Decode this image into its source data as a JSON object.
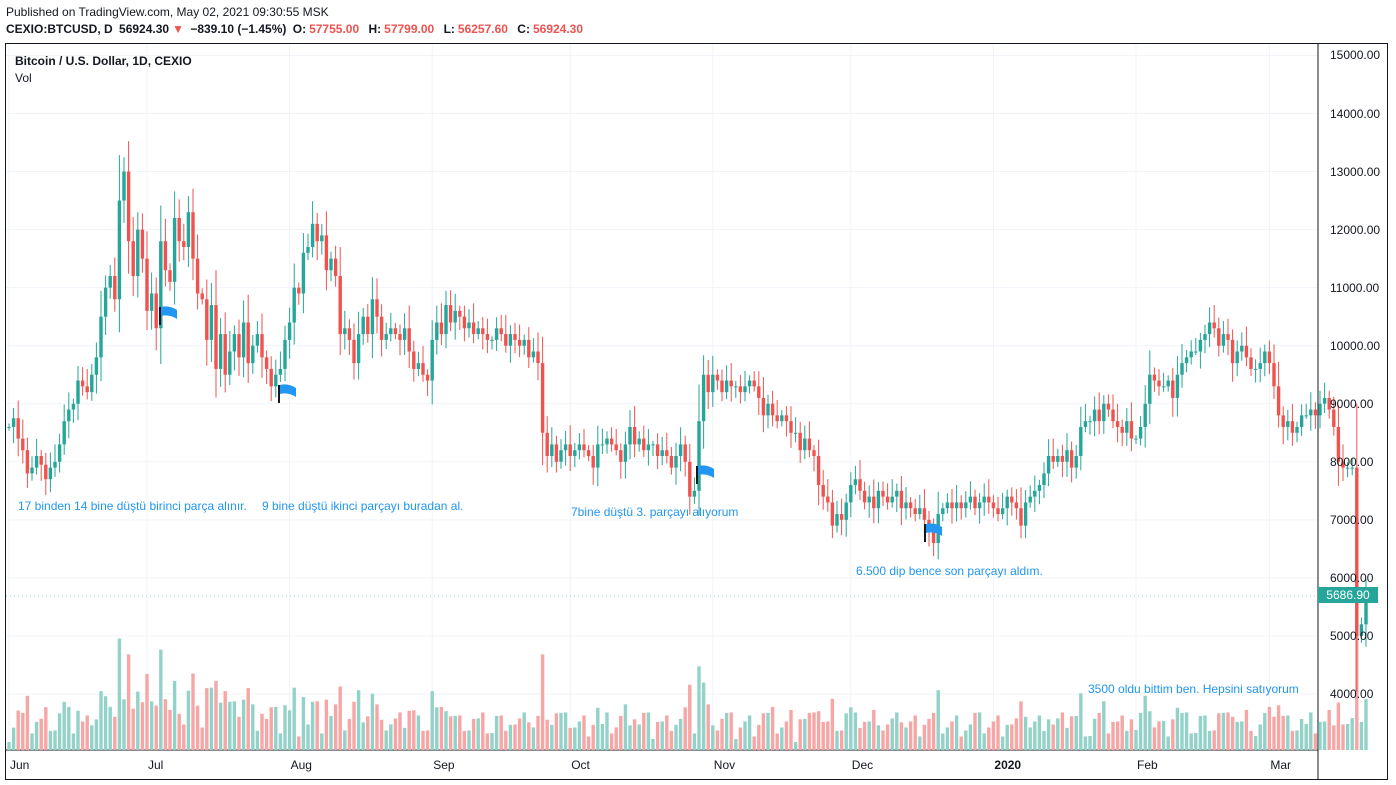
{
  "header": {
    "published": "Published on TradingView.com, May 02, 2021 09:30:55 MSK",
    "symbol": "CEXIO:BTCUSD, D",
    "last": "56924.30",
    "change_arrow": "▼",
    "change": "−839.10 (−1.45%)",
    "o_label": "O:",
    "o_value": "57755.00",
    "h_label": "H:",
    "h_value": "57799.00",
    "l_label": "L:",
    "l_value": "56257.60",
    "c_label": "C:",
    "c_value": "56924.30"
  },
  "legend": {
    "title": "Bitcoin / U.S. Dollar, 1D, CEXIO",
    "volume": "Vol"
  },
  "notes": [
    "17 binden 14 bine düştü birinci parça alınır.",
    "9 bine düştü ikinci parçayı buradan al.",
    "7bine düştü 3. parçayı alıyorum",
    "6.500 dip bence son parçayı aldım.",
    "3500 oldu bittim ben. Hepsini satıyorum"
  ],
  "price_tag": "5686.90",
  "colors": {
    "up": "#26a69a",
    "down": "#ef5350",
    "up_vol": "#93d2c9",
    "down_vol": "#f5a6a5",
    "flag": "#2196f3",
    "note": "#2196f3"
  },
  "chart_data": {
    "type": "candlestick",
    "title": "Bitcoin / U.S. Dollar, 1D, CEXIO",
    "y_ticks": [
      "15000.00",
      "14000.00",
      "13000.00",
      "12000.00",
      "11000.00",
      "10000.00",
      "9000.00",
      "8000.00",
      "7000.00",
      "6000.00",
      "5000.00",
      "4000.00"
    ],
    "ylim": [
      3000,
      15500
    ],
    "x_ticks": [
      "Jun",
      "Jul",
      "Aug",
      "Sep",
      "Oct",
      "Nov",
      "Dec",
      "2020",
      "Feb",
      "Mar"
    ],
    "x_tick_bold": [
      false,
      false,
      false,
      false,
      false,
      false,
      false,
      true,
      false,
      false
    ],
    "start_date": "2019-06-01",
    "closes": [
      8600,
      8750,
      8400,
      8200,
      7800,
      7900,
      8100,
      7950,
      7700,
      7900,
      8000,
      8300,
      8700,
      8900,
      9000,
      9400,
      9300,
      9200,
      9500,
      9800,
      10500,
      11000,
      11200,
      10800,
      12500,
      13000,
      11800,
      11200,
      12000,
      11500,
      10600,
      10900,
      10300,
      11800,
      11300,
      11100,
      12200,
      11800,
      11700,
      12300,
      11500,
      10900,
      10800,
      10100,
      10700,
      9600,
      10200,
      9500,
      9900,
      10200,
      9800,
      10400,
      9700,
      10000,
      10200,
      9800,
      9600,
      9300,
      9500,
      9600,
      10100,
      10400,
      11000,
      10900,
      11600,
      11700,
      12100,
      11800,
      11900,
      11300,
      11500,
      11200,
      10200,
      10300,
      10100,
      9700,
      10200,
      10500,
      10200,
      10800,
      10500,
      10100,
      10200,
      10300,
      10200,
      10100,
      10300,
      9900,
      9600,
      9700,
      9500,
      9400,
      10100,
      10400,
      10200,
      10700,
      10400,
      10600,
      10500,
      10300,
      10400,
      10200,
      10300,
      10200,
      10100,
      10100,
      10300,
      10200,
      10000,
      10200,
      10100,
      10000,
      10100,
      9800,
      9900,
      9700,
      8500,
      8100,
      8300,
      8000,
      8200,
      8300,
      8100,
      8200,
      8300,
      8200,
      8100,
      7900,
      8300,
      8300,
      8400,
      8300,
      8200,
      8000,
      8300,
      8600,
      8300,
      8400,
      8200,
      8300,
      8300,
      8100,
      8200,
      8100,
      7900,
      8100,
      8300,
      8000,
      7400,
      7500,
      8700,
      9500,
      9200,
      9500,
      9400,
      9200,
      9400,
      9300,
      9300,
      9200,
      9300,
      9400,
      9300,
      9100,
      8800,
      9000,
      8800,
      8700,
      8800,
      8700,
      8500,
      8500,
      8200,
      8400,
      8200,
      8100,
      7600,
      7400,
      7300,
      6900,
      7100,
      7000,
      7300,
      7600,
      7700,
      7500,
      7300,
      7400,
      7200,
      7500,
      7400,
      7300,
      7400,
      7500,
      7200,
      7300,
      7200,
      7100,
      7200,
      7000,
      6800,
      6600,
      7100,
      7200,
      7300,
      7200,
      7300,
      7200,
      7300,
      7400,
      7200,
      7300,
      7400,
      7300,
      7200,
      7100,
      7200,
      7400,
      7300,
      7200,
      6900,
      7300,
      7400,
      7500,
      7600,
      7800,
      8100,
      8000,
      8100,
      8000,
      8200,
      7900,
      8100,
      8600,
      8700,
      8700,
      8900,
      8700,
      9000,
      8900,
      8700,
      8600,
      8500,
      8700,
      8400,
      8400,
      8600,
      9000,
      9500,
      9400,
      9300,
      9300,
      9400,
      9100,
      9500,
      9700,
      9800,
      9900,
      9900,
      10100,
      10200,
      10400,
      10300,
      10000,
      10200,
      10100,
      9700,
      9900,
      10000,
      9800,
      9600,
      9600,
      9700,
      9900,
      9700,
      9300,
      8800,
      8600,
      8700,
      8500,
      8600,
      8800,
      8800,
      8900,
      8800,
      9000,
      9100,
      8900,
      8600,
      8000,
      7900,
      7900,
      7900,
      5000,
      5200,
      5700
    ]
  }
}
